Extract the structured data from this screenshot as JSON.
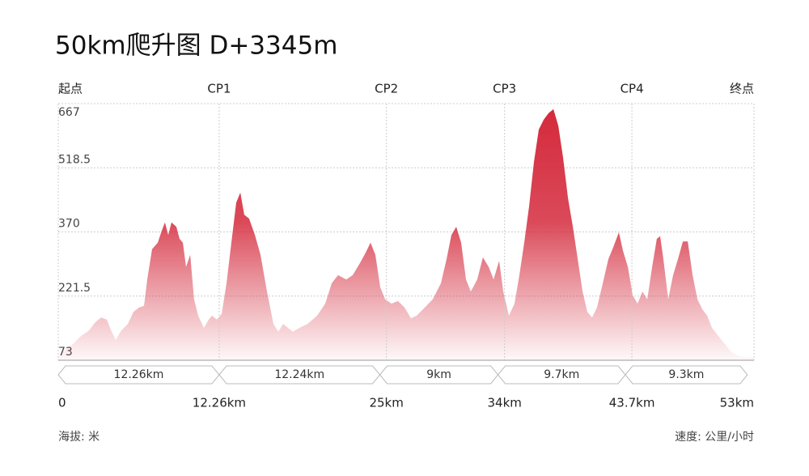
{
  "chart_data": {
    "type": "area",
    "title": "50km爬升图   D+3345m",
    "checkpoints": [
      "起点",
      "CP1",
      "CP2",
      "CP3",
      "CP4",
      "终点"
    ],
    "x": [
      0,
      0.49,
      1.11,
      1.73,
      2.34,
      2.83,
      3.27,
      3.7,
      4.07,
      4.38,
      4.81,
      5.3,
      5.73,
      6.16,
      6.53,
      6.78,
      7.15,
      7.58,
      7.89,
      8.13,
      8.38,
      8.63,
      9,
      9.24,
      9.49,
      9.74,
      10.05,
      10.35,
      10.66,
      11.09,
      11.46,
      11.71,
      12.08,
      12.45,
      12.82,
      13.19,
      13.56,
      13.87,
      14.17,
      14.54,
      14.98,
      15.41,
      15.9,
      16.39,
      16.76,
      17.13,
      17.5,
      17.87,
      18.37,
      18.98,
      19.72,
      20.34,
      20.83,
      21.32,
      21.94,
      22.43,
      22.99,
      23.42,
      23.79,
      24.16,
      24.53,
      24.9,
      25.39,
      25.88,
      26.38,
      26.87,
      27.3,
      27.92,
      28.53,
      29.15,
      29.58,
      29.95,
      30.32,
      30.69,
      31.06,
      31.43,
      31.92,
      32.35,
      32.79,
      33.16,
      33.59,
      33.9,
      34.33,
      34.76,
      35.13,
      35.5,
      35.87,
      36.24,
      36.61,
      36.98,
      37.35,
      37.72,
      38.09,
      38.46,
      38.83,
      39.2,
      39.57,
      39.94,
      40.3,
      40.67,
      41.04,
      41.48,
      41.91,
      42.28,
      42.71,
      43.02,
      43.39,
      43.76,
      44.13,
      44.5,
      44.87,
      45.24,
      45.6,
      45.85,
      46.1,
      46.47,
      46.84,
      47.21,
      47.58,
      47.95,
      48.32,
      48.69,
      49.06,
      49.43,
      49.8,
      50.29,
      50.78,
      51.27,
      51.89,
      52.57,
      53
    ],
    "values": [
      82,
      97,
      110,
      129,
      142,
      161,
      172,
      167,
      139,
      120,
      142,
      157,
      185,
      195,
      199,
      260,
      330,
      345,
      373,
      392,
      363,
      392,
      382,
      354,
      345,
      289,
      317,
      214,
      176,
      148,
      167,
      176,
      167,
      180,
      251,
      345,
      438,
      461,
      410,
      401,
      363,
      317,
      232,
      157,
      139,
      157,
      148,
      139,
      148,
      157,
      176,
      204,
      251,
      270,
      260,
      270,
      298,
      322,
      345,
      317,
      242,
      214,
      204,
      210,
      195,
      170,
      176,
      195,
      214,
      251,
      307,
      363,
      382,
      345,
      260,
      232,
      260,
      311,
      289,
      260,
      303,
      232,
      176,
      204,
      270,
      345,
      429,
      532,
      607,
      630,
      645,
      654,
      616,
      541,
      448,
      382,
      307,
      232,
      185,
      172,
      195,
      251,
      307,
      335,
      369,
      326,
      289,
      223,
      204,
      232,
      214,
      289,
      354,
      360,
      307,
      214,
      270,
      307,
      348,
      348,
      270,
      214,
      191,
      176,
      148,
      129,
      110,
      92,
      82,
      79,
      79
    ],
    "color": "#d42a3c",
    "xlim": [
      0,
      53
    ],
    "xticks": [
      0,
      {
        "value": 12.26,
        "label": "12.26km"
      },
      {
        "value": 25,
        "label": "25km"
      },
      {
        "value": 34,
        "label": "34km"
      },
      {
        "value": 43.7,
        "label": "43.7km"
      },
      {
        "value": 53,
        "label": "53km"
      }
    ],
    "ylim": [
      73,
      667
    ],
    "yticks": [
      73,
      221.5,
      370,
      518.5,
      667
    ],
    "grid": true,
    "segments": {
      "values": [
        12.26,
        12.24,
        9,
        9.7,
        9.3
      ],
      "value_labels": [
        "12.26km",
        "12.24km",
        "9km",
        "9.7km",
        "9.3km"
      ]
    },
    "y_unit_label": "海拔: 米",
    "speed_unit_label": "速度: 公里/小时"
  }
}
